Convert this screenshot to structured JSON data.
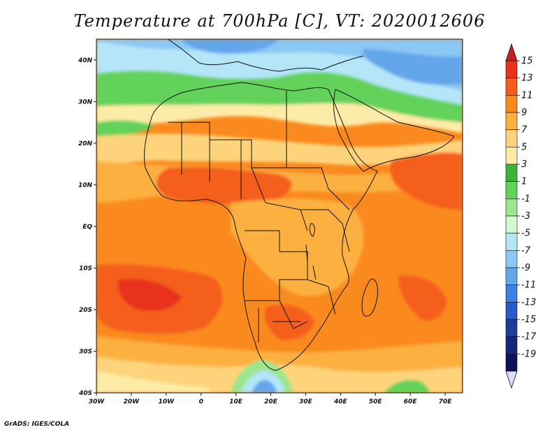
{
  "title": "Temperature at 700hPa [C], VT: 2020012606",
  "footer": "GrADS: IGES/COLA",
  "map": {
    "region": "Africa",
    "projection": "lat-lon",
    "lon_range": [
      -30,
      75
    ],
    "lat_range": [
      -40,
      45
    ],
    "lon_ticks": [
      "30W",
      "20W",
      "10W",
      "0",
      "10E",
      "20E",
      "30E",
      "40E",
      "50E",
      "60E",
      "70E"
    ],
    "lat_ticks": [
      "40N",
      "30N",
      "20N",
      "10N",
      "EQ",
      "10S",
      "20S",
      "30S",
      "40S"
    ],
    "lon_values": [
      -30,
      -20,
      -10,
      0,
      10,
      20,
      30,
      40,
      50,
      60,
      70
    ],
    "lat_values": [
      40,
      30,
      20,
      10,
      0,
      -10,
      -20,
      -30,
      -40
    ]
  },
  "colorbar": {
    "labels": [
      "15",
      "13",
      "11",
      "9",
      "7",
      "5",
      "3",
      "1",
      "-1",
      "-3",
      "-5",
      "-7",
      "-9",
      "-11",
      "-13",
      "-15",
      "-17",
      "-19"
    ],
    "colors": [
      "#e8321e",
      "#f45e1c",
      "#fa8a1e",
      "#fcb040",
      "#fdd47c",
      "#fdeca8",
      "#3cb43c",
      "#64d25a",
      "#9ce68e",
      "#d2f8d4",
      "#b4e6f8",
      "#8cc8f4",
      "#64a6ea",
      "#3c82e0",
      "#285ac8",
      "#1e3c9a",
      "#142878",
      "#0a145a"
    ],
    "top_arrow_color": "#c81e1e",
    "bottom_arrow_color": "#dcdcfa"
  }
}
